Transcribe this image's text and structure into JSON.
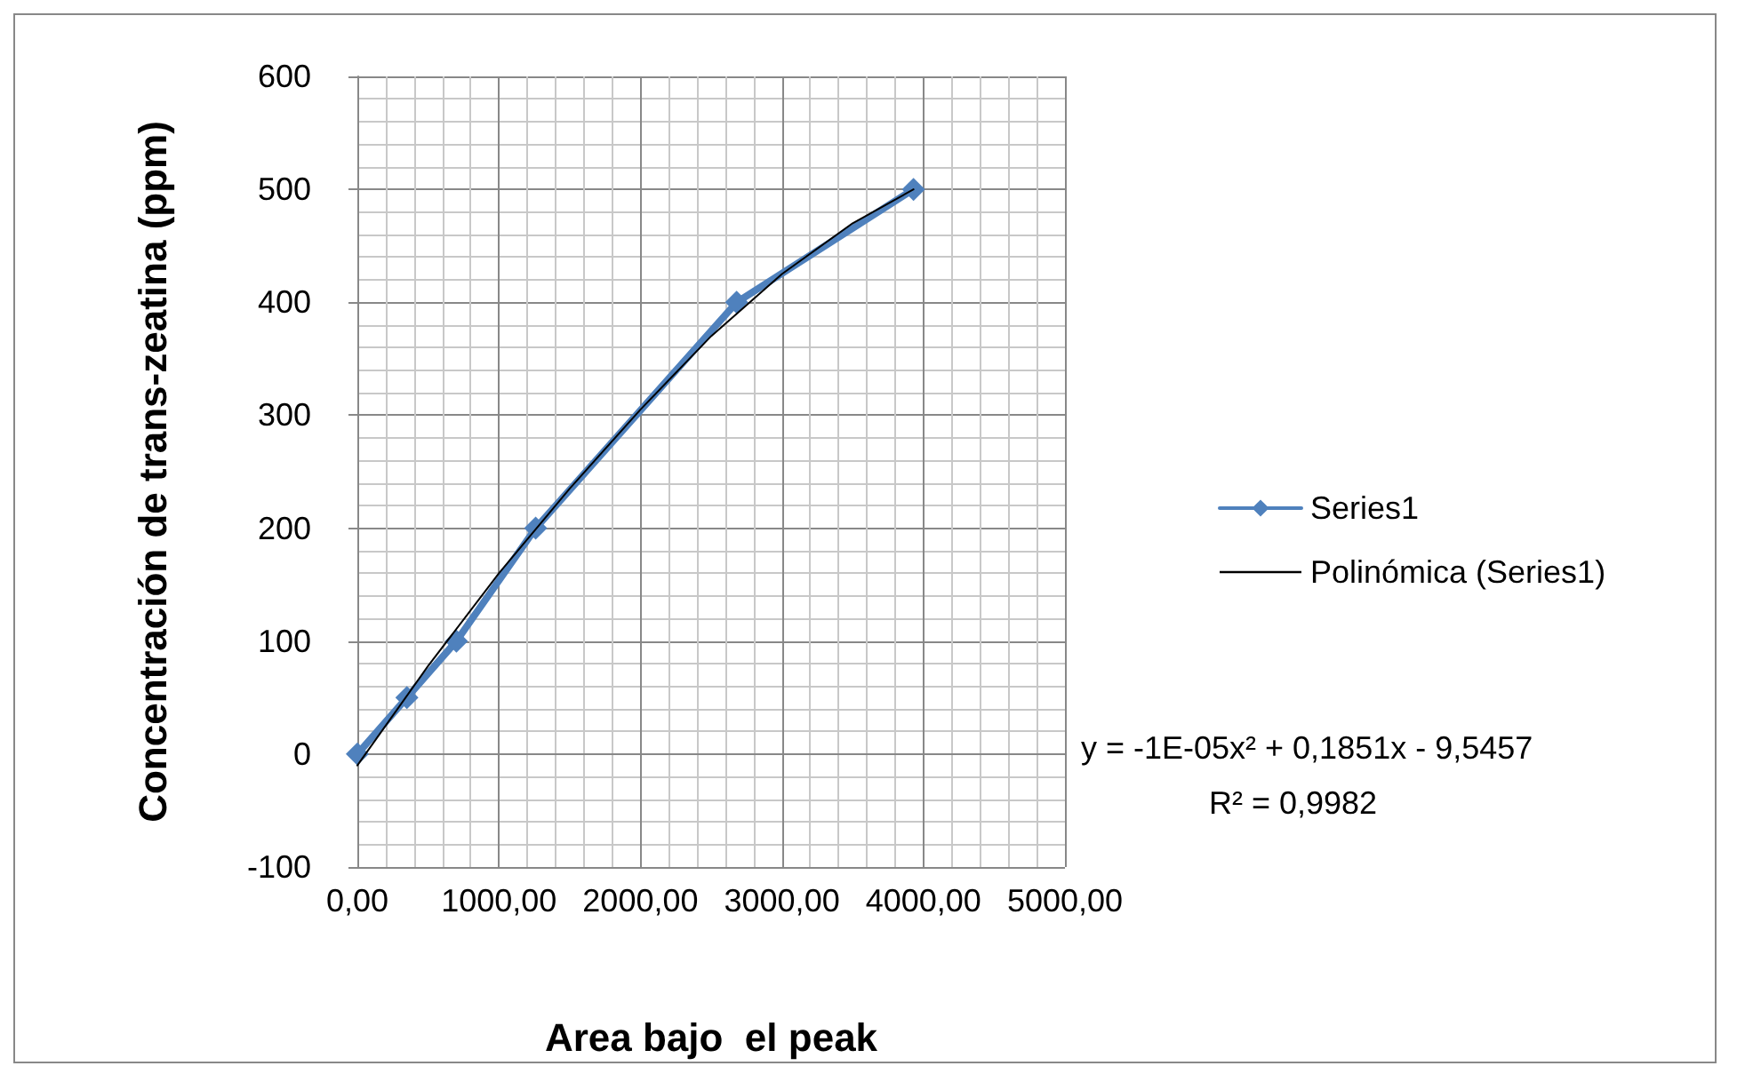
{
  "chart_data": {
    "type": "scatter",
    "xlabel": "Area bajo  el peak",
    "ylabel": "Concentración de trans-zeatina (ppm)",
    "xlim": [
      0,
      5000
    ],
    "xticks": [
      {
        "value": 0,
        "label": "0,00"
      },
      {
        "value": 1000,
        "label": "1000,00"
      },
      {
        "value": 2000,
        "label": "2000,00"
      },
      {
        "value": 3000,
        "label": "3000,00"
      },
      {
        "value": 4000,
        "label": "4000,00"
      },
      {
        "value": 5000,
        "label": "5000,00"
      }
    ],
    "ylim": [
      -100,
      600
    ],
    "yticks": [
      -100,
      0,
      100,
      200,
      300,
      400,
      500,
      600
    ],
    "grid": true,
    "legend": "right",
    "series": [
      {
        "name": "Series1",
        "type": "line",
        "color": "#4f81bd",
        "marker": "diamond",
        "line_style": "solid",
        "x": [
          0,
          350,
          700,
          1260,
          2680,
          3930
        ],
        "values": [
          0,
          50,
          100,
          200,
          400,
          500
        ]
      },
      {
        "name": "Polinómica (Series1)",
        "type": "line",
        "color": "#000000",
        "marker": "none",
        "line_style": "solid",
        "x": [
          0,
          500,
          1000,
          1500,
          2000,
          2500,
          3000,
          3500,
          3930
        ],
        "values": [
          -10,
          78,
          160,
          235,
          305,
          370,
          425,
          470,
          500
        ]
      }
    ],
    "annotations": [
      "y = -1E-05x² + 0,1851x - 9,5457",
      "R² = 0,9982"
    ]
  }
}
